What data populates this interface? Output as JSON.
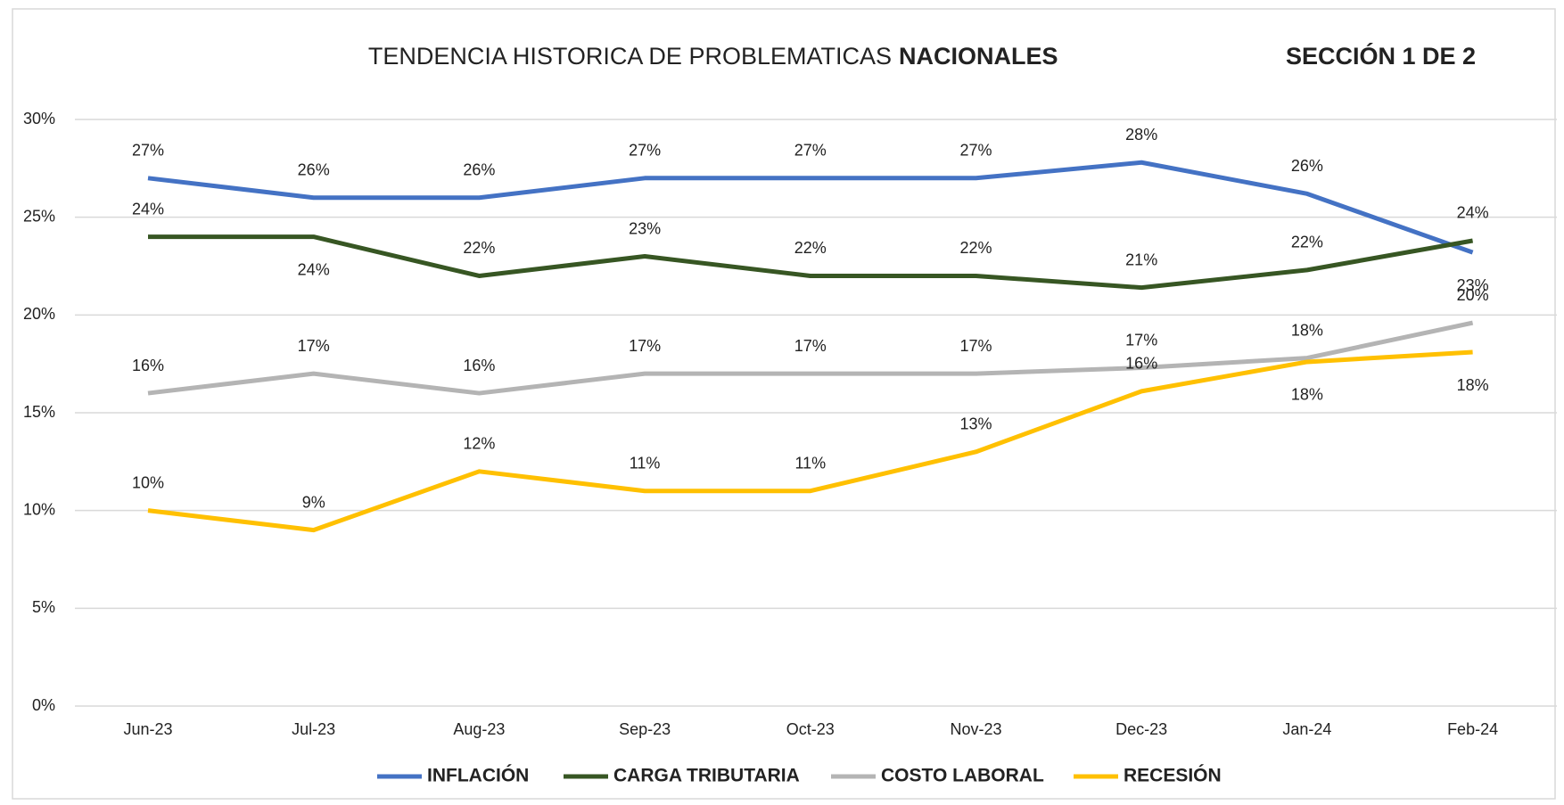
{
  "chart_data": {
    "type": "line",
    "title": "TENDENCIA HISTORICA DE PROBLEMATICAS",
    "title_emphasis": "NACIONALES",
    "annotation": "SECCIÓN 1 DE 2",
    "categories": [
      "Jun-23",
      "Jul-23",
      "Aug-23",
      "Sep-23",
      "Oct-23",
      "Nov-23",
      "Dec-23",
      "Jan-24",
      "Feb-24"
    ],
    "series": [
      {
        "name": "INFLACIÓN",
        "color": "#4472c4",
        "values": [
          27,
          26,
          26,
          27,
          27,
          27,
          27.8,
          26.2,
          23.2
        ],
        "value_labels": [
          "27%",
          "26%",
          "26%",
          "27%",
          "27%",
          "27%",
          "28%",
          "26%",
          "23%"
        ]
      },
      {
        "name": "CARGA TRIBUTARIA",
        "color": "#375623",
        "values": [
          24,
          24,
          22,
          23,
          22,
          22,
          21.4,
          22.3,
          23.8
        ],
        "value_labels": [
          "24%",
          "24%",
          "22%",
          "23%",
          "22%",
          "22%",
          "21%",
          "22%",
          "24%"
        ]
      },
      {
        "name": "COSTO LABORAL",
        "color": "#b4b4b4",
        "values": [
          16,
          17,
          16,
          17,
          17,
          17,
          17.3,
          17.8,
          19.6
        ],
        "value_labels": [
          "16%",
          "17%",
          "16%",
          "17%",
          "17%",
          "17%",
          "17%",
          "18%",
          "20%"
        ]
      },
      {
        "name": "RECESIÓN",
        "color": "#ffc000",
        "values": [
          10,
          9,
          12,
          11,
          11,
          13,
          16.1,
          17.6,
          18.1
        ],
        "value_labels": [
          "10%",
          "9%",
          "12%",
          "11%",
          "11%",
          "13%",
          "16%",
          "18%",
          "18%"
        ]
      }
    ],
    "ylim": [
      0,
      30
    ],
    "yticks": [
      {
        "value": 0,
        "label": "0%"
      },
      {
        "value": 5,
        "label": "5%"
      },
      {
        "value": 10,
        "label": "10%"
      },
      {
        "value": 15,
        "label": "15%"
      },
      {
        "value": 20,
        "label": "20%"
      },
      {
        "value": 25,
        "label": "25%"
      },
      {
        "value": 30,
        "label": "30%"
      }
    ],
    "grid": true,
    "legend": "bottom"
  }
}
